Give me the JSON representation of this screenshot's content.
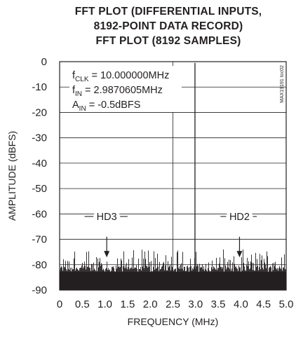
{
  "chart_data": {
    "type": "line",
    "title_lines": [
      "FFT PLOT (DIFFERENTIAL INPUTS,",
      "8192-POINT DATA RECORD)",
      "FFT PLOT (8192 SAMPLES)"
    ],
    "xlabel": "FREQUENCY (MHz)",
    "ylabel": "AMPLITUDE (dBFS)",
    "xlim": [
      0,
      5.0
    ],
    "ylim": [
      -90,
      0
    ],
    "x_ticks": [
      "0",
      "0.5",
      "1.0",
      "1.5",
      "2.0",
      "2.5",
      "3.0",
      "3.5",
      "4.0",
      "4.5",
      "5.0"
    ],
    "y_ticks": [
      "0",
      "-10",
      "-20",
      "-30",
      "-40",
      "-50",
      "-60",
      "-70",
      "-80",
      "-90"
    ],
    "grid": true,
    "fundamental": {
      "x": 2.987,
      "y": -0.5
    },
    "noise_floor": {
      "min": -90,
      "max": -74
    },
    "annotations": [
      {
        "label": "HD3",
        "x": 1.04,
        "y": -76
      },
      {
        "label": "HD2",
        "x": 3.97,
        "y": -76
      }
    ],
    "text_box": {
      "fclk": {
        "sym": "f",
        "sub": "CLK",
        "rest": " = 10.000000MHz"
      },
      "fin": {
        "sym": "f",
        "sub": "IN",
        "rest": " = 2.9870605MHz"
      },
      "ain": {
        "sym": "A",
        "sub": "IN",
        "rest": " = -0.5dBFS"
      }
    },
    "side_label": "MAX19191 toc02",
    "series_color": "#231f20",
    "grid_color": "#231f20"
  }
}
